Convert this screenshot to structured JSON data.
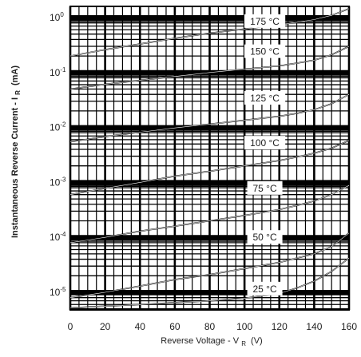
{
  "chart_data": {
    "type": "line",
    "title": "",
    "xlabel": "Reverse Voltage - V",
    "xlabel_subscript": "R",
    "xlabel_unit": "(V)",
    "ylabel": "Instantaneous Reverse Current - I",
    "ylabel_subscript": "R",
    "ylabel_unit": "(mA)",
    "xlim": [
      0,
      160
    ],
    "ylim": [
      5e-06,
      1.5
    ],
    "y_scale": "log",
    "grid": true,
    "x_ticks": [
      {
        "value": 0,
        "label": "0"
      },
      {
        "value": 20,
        "label": "20"
      },
      {
        "value": 40,
        "label": "40"
      },
      {
        "value": 60,
        "label": "60"
      },
      {
        "value": 80,
        "label": "80"
      },
      {
        "value": 100,
        "label": "100"
      },
      {
        "value": 120,
        "label": "120"
      },
      {
        "value": 140,
        "label": "140"
      },
      {
        "value": 160,
        "label": "160"
      }
    ],
    "y_ticks": [
      {
        "value": 1,
        "base": "10",
        "exp": "0"
      },
      {
        "value": 0.1,
        "base": "10",
        "exp": "-1"
      },
      {
        "value": 0.01,
        "base": "10",
        "exp": "-2"
      },
      {
        "value": 0.001,
        "base": "10",
        "exp": "-3"
      },
      {
        "value": 0.0001,
        "base": "10",
        "exp": "-4"
      },
      {
        "value": 1e-05,
        "base": "10",
        "exp": "-5"
      }
    ],
    "series": [
      {
        "name": "175 °C",
        "label_x": 108,
        "label_y": 0.85,
        "x": [
          0,
          20,
          40,
          60,
          80,
          100,
          120,
          130,
          140,
          150,
          160
        ],
        "y": [
          0.2,
          0.26,
          0.33,
          0.42,
          0.52,
          0.62,
          0.74,
          0.82,
          0.92,
          1.1,
          1.45
        ]
      },
      {
        "name": "150 °C",
        "label_x": 108,
        "label_y": 0.24,
        "x": [
          0,
          20,
          40,
          60,
          80,
          100,
          120,
          130,
          140,
          150,
          160
        ],
        "y": [
          0.05,
          0.061,
          0.072,
          0.085,
          0.1,
          0.115,
          0.132,
          0.148,
          0.168,
          0.21,
          0.3
        ]
      },
      {
        "name": "125 °C",
        "label_x": 108,
        "label_y": 0.034,
        "x": [
          0,
          20,
          40,
          60,
          80,
          100,
          120,
          130,
          140,
          150,
          160
        ],
        "y": [
          0.0055,
          0.0068,
          0.0082,
          0.0098,
          0.0115,
          0.0135,
          0.016,
          0.018,
          0.021,
          0.027,
          0.04
        ]
      },
      {
        "name": "100 °C",
        "label_x": 108,
        "label_y": 0.0052,
        "x": [
          0,
          20,
          40,
          60,
          80,
          100,
          120,
          130,
          140,
          150,
          160
        ],
        "y": [
          0.0006,
          0.00078,
          0.001,
          0.0013,
          0.0016,
          0.002,
          0.0025,
          0.0029,
          0.0034,
          0.0042,
          0.0058
        ]
      },
      {
        "name": "75 °C",
        "label_x": 108,
        "label_y": 0.00078,
        "x": [
          0,
          20,
          40,
          60,
          80,
          100,
          120,
          130,
          140,
          150,
          160
        ],
        "y": [
          8e-05,
          0.0001,
          0.00013,
          0.00016,
          0.0002,
          0.00025,
          0.00032,
          0.00038,
          0.00046,
          0.0006,
          0.00088
        ]
      },
      {
        "name": "50 °C",
        "label_x": 108,
        "label_y": 0.0001,
        "x": [
          0,
          20,
          40,
          60,
          80,
          100,
          120,
          130,
          140,
          150,
          160
        ],
        "y": [
          8e-06,
          1e-05,
          1.3e-05,
          1.7e-05,
          2.1e-05,
          2.7e-05,
          3.5e-05,
          4.2e-05,
          5e-05,
          6.8e-05,
          0.00012
        ]
      },
      {
        "name": "25 °C",
        "label_x": 108,
        "label_y": 1.15e-05,
        "x": [
          0,
          20,
          40,
          60,
          80,
          100,
          120,
          130,
          140,
          150,
          160
        ],
        "y": [
          5.2e-06,
          5.6e-06,
          6e-06,
          6.5e-06,
          7e-06,
          7.8e-06,
          9.5e-06,
          1.2e-05,
          1.6e-05,
          2.4e-05,
          4.2e-05
        ]
      }
    ]
  }
}
